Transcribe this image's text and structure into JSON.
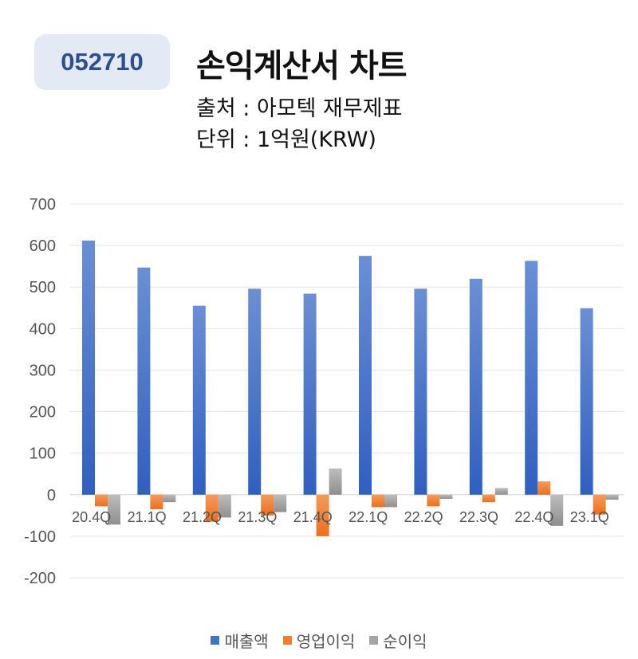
{
  "header": {
    "ticker": "052710",
    "title": "손익계산서 차트",
    "source": "출처 : 아모텍 재무제표",
    "unit": "단위 : 1억원(KRW)"
  },
  "chart_data": {
    "type": "bar",
    "categories": [
      "20.4Q",
      "21.1Q",
      "21.2Q",
      "21.3Q",
      "21.4Q",
      "22.1Q",
      "22.2Q",
      "22.3Q",
      "22.4Q",
      "23.1Q"
    ],
    "series": [
      {
        "name": "매출액",
        "color": "#4472c4",
        "values": [
          612,
          547,
          455,
          496,
          484,
          575,
          496,
          520,
          563,
          449
        ]
      },
      {
        "name": "영업이익",
        "color": "#ed7d31",
        "values": [
          -28,
          -35,
          -65,
          -50,
          -100,
          -30,
          -28,
          -18,
          32,
          -48
        ]
      },
      {
        "name": "순이익",
        "color": "#a5a5a5",
        "values": [
          -72,
          -18,
          -55,
          -42,
          63,
          -30,
          -10,
          16,
          -75,
          -12
        ]
      }
    ],
    "yticks": [
      700,
      600,
      500,
      400,
      300,
      200,
      100,
      0,
      -100,
      -200
    ],
    "ylim": [
      -200,
      700
    ],
    "grid": true,
    "legend": "bottom"
  }
}
